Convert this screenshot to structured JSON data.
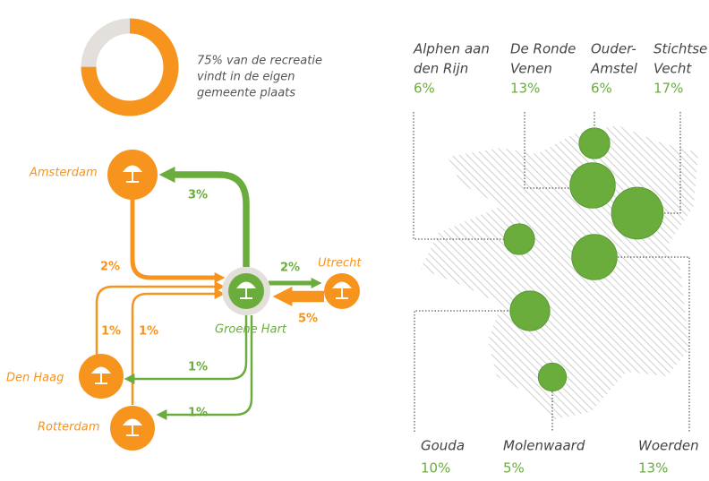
{
  "donut": {
    "value": 75,
    "caption": [
      "75% van de recreatie",
      "vindt in de eigen",
      "gemeente plaats"
    ]
  },
  "nodes": [
    {
      "label": "Amsterdam"
    },
    {
      "label": "Groene Hart"
    },
    {
      "label": "Utrecht"
    },
    {
      "label": "Den Haag"
    },
    {
      "label": "Rotterdam"
    }
  ],
  "flows": [
    {
      "value": 3,
      "label": "3%"
    },
    {
      "value": 2,
      "label": "2%"
    },
    {
      "value": 2,
      "label": "2%"
    },
    {
      "value": 5,
      "label": "5%"
    },
    {
      "value": 1,
      "label": "1%"
    },
    {
      "value": 1,
      "label": "1%"
    },
    {
      "value": 1,
      "label": "1%"
    },
    {
      "value": 1,
      "label": "1%"
    }
  ],
  "municipalities": [
    {
      "name": [
        "Alphen aan",
        "den Rijn"
      ],
      "value": 6,
      "label": "6%"
    },
    {
      "name": [
        "De Ronde",
        "Venen"
      ],
      "value": 13,
      "label": "13%"
    },
    {
      "name": [
        "Ouder-",
        "Amstel"
      ],
      "value": 6,
      "label": "6%"
    },
    {
      "name": [
        "Stichtse",
        "Vecht"
      ],
      "value": 17,
      "label": "17%"
    },
    {
      "name": [
        "Gouda"
      ],
      "value": 10,
      "label": "10%"
    },
    {
      "name": [
        "Molenwaard"
      ],
      "value": 5,
      "label": "5%"
    },
    {
      "name": [
        "Woerden"
      ],
      "value": 13,
      "label": "13%"
    }
  ]
}
